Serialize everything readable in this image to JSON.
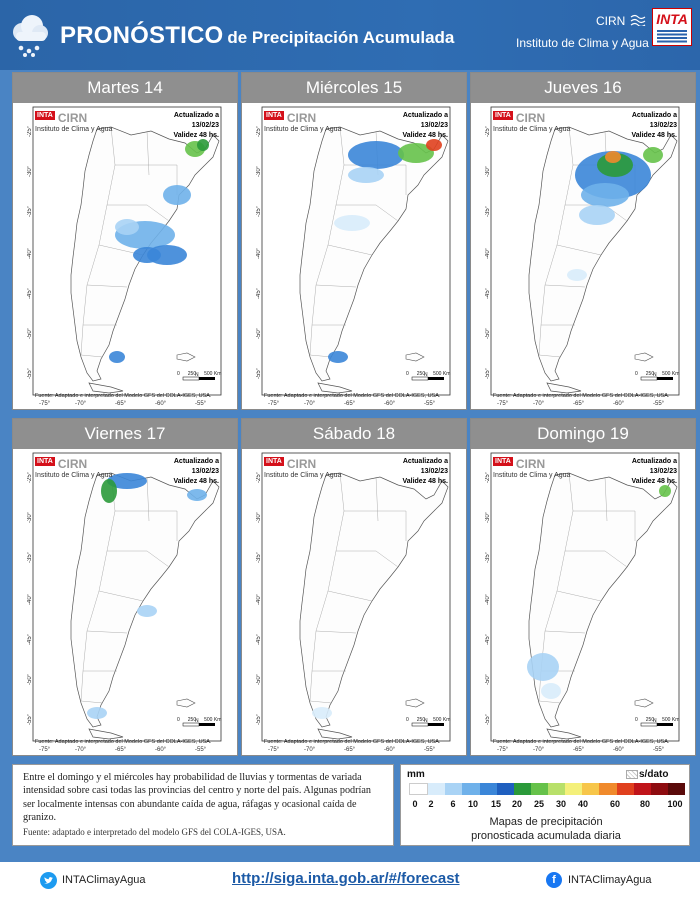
{
  "header": {
    "title_main": "PRONÓSTICO",
    "title_sub": "de Precipitación Acumulada",
    "org_short": "CIRN",
    "org_name": "Instituto de Clima y Agua",
    "logo_text": "INTA"
  },
  "map_common": {
    "logo_inta": "INTA",
    "logo_cirn": "CIRN",
    "logo_sub": "Instituto de Clima y Agua",
    "updated": "Actualizado a 13/02/23",
    "validity": "Validez 48 hs.",
    "source": "Fuente: Adaptado e interpretado del Modelo GFS del COLA-IGES, USA.",
    "lat_labels": [
      "-25°",
      "-30°",
      "-35°",
      "-40°",
      "-45°",
      "-50°",
      "-55°"
    ],
    "lon_labels": [
      "-75°",
      "-70°",
      "-65°",
      "-60°",
      "-55°"
    ],
    "scale_labels": [
      "0",
      "250",
      "500 Km"
    ],
    "north": "N"
  },
  "days": [
    {
      "label": "Martes 14"
    },
    {
      "label": "Miércoles 15"
    },
    {
      "label": "Jueves 16"
    },
    {
      "label": "Viernes 17"
    },
    {
      "label": "Sábado 18"
    },
    {
      "label": "Domingo 19"
    }
  ],
  "description": "Entre el domingo y el miércoles hay probabilidad de lluvias y tormentas de variada intensidad sobre casi todas las provincias del centro y norte del país. Algunas podrían ser localmente intensas con abundante caída de agua, ráfagas y ocasional caída de granizo.",
  "description_source": "Fuente: adaptado e interpretado del modelo GFS del COLA-IGES, USA.",
  "legend": {
    "unit": "mm",
    "nodata": "s/dato",
    "ticks": [
      "0",
      "2",
      "6",
      "10",
      "15",
      "20",
      "25",
      "30",
      "40",
      "60",
      "80",
      "100"
    ],
    "colors": [
      "#ffffff",
      "#d8ecfb",
      "#a9d3f5",
      "#6fb1ea",
      "#3b86d8",
      "#1f5fbf",
      "#2b9a3a",
      "#66c24a",
      "#b8e06a",
      "#f4f07a",
      "#f7c64a",
      "#f08a2c",
      "#e0401e",
      "#c0141a",
      "#8e0c10",
      "#5a0a0a"
    ],
    "caption_line1": "Mapas de precipitación",
    "caption_line2": "pronosticada acumulada diaria"
  },
  "footer": {
    "twitter": "INTAClimayAgua",
    "url": "http://siga.inta.gob.ar/#/forecast",
    "facebook": "INTAClimayAgua"
  }
}
